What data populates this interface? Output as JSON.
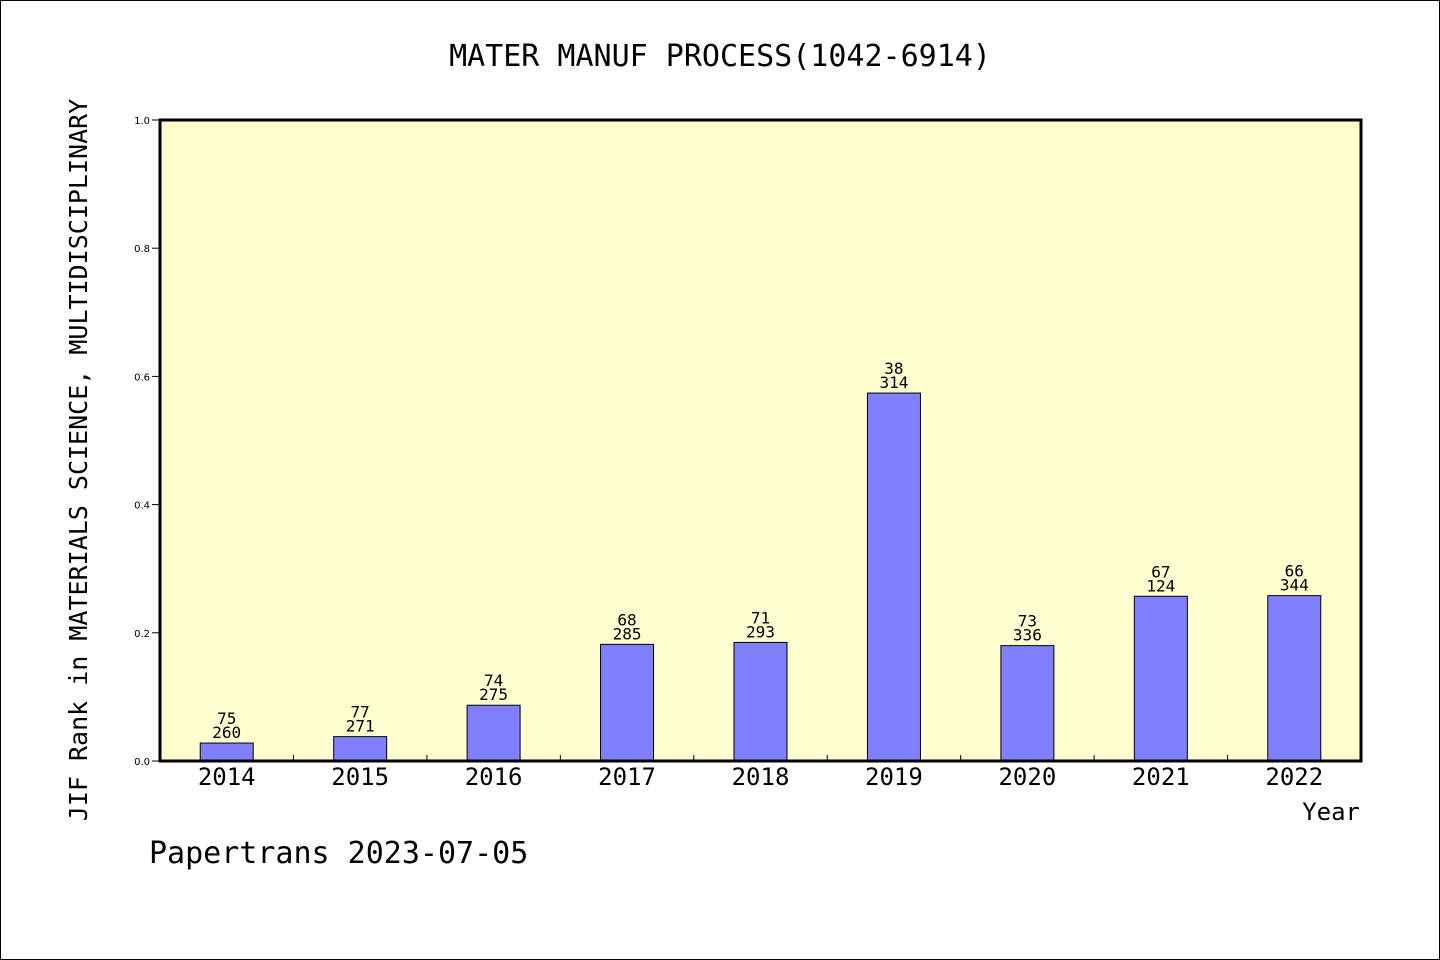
{
  "chart_data": {
    "type": "bar",
    "title": "MATER MANUF PROCESS(1042-6914)",
    "xlabel": "Year",
    "ylabel": "JIF Rank in MATERIALS SCIENCE, MULTIDISCIPLINARY",
    "categories": [
      "2014",
      "2015",
      "2016",
      "2017",
      "2018",
      "2019",
      "2020",
      "2021",
      "2022"
    ],
    "values": [
      0.028,
      0.038,
      0.087,
      0.182,
      0.185,
      0.574,
      0.18,
      0.257,
      0.258
    ],
    "bar_labels": [
      {
        "rank": "75",
        "total": "260"
      },
      {
        "rank": "77",
        "total": "271"
      },
      {
        "rank": "74",
        "total": "275"
      },
      {
        "rank": "68",
        "total": "285"
      },
      {
        "rank": "71",
        "total": "293"
      },
      {
        "rank": "38",
        "total": "314"
      },
      {
        "rank": "73",
        "total": "336"
      },
      {
        "rank": "67",
        "total": "124"
      },
      {
        "rank": "66",
        "total": "344"
      }
    ],
    "ylim": [
      0,
      1.0
    ],
    "yticks": [
      "0.0",
      "0.2",
      "0.4",
      "0.6",
      "0.8",
      "1.0"
    ],
    "grid": false,
    "colors": {
      "bar": "#8080ff",
      "plot_background": "#ffffd2",
      "axis": "#000000"
    }
  },
  "footer": "Papertrans 2023-07-05"
}
